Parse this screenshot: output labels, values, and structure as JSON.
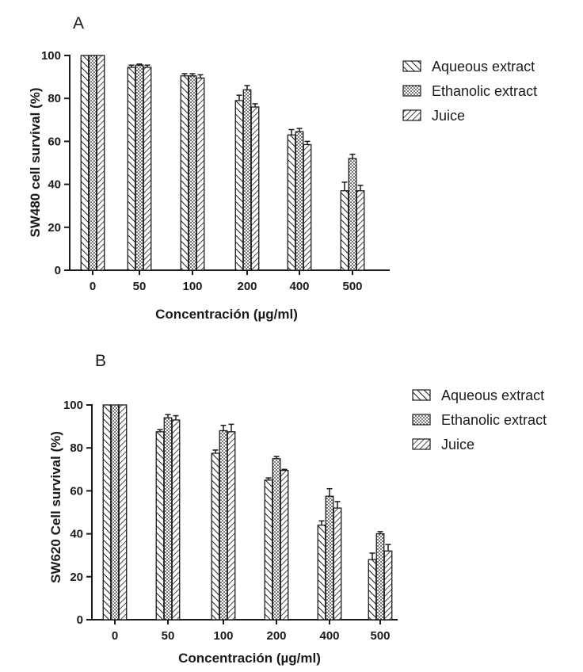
{
  "chart_data": [
    {
      "type": "bar",
      "panel_label": "A",
      "categories": [
        "0",
        "50",
        "100",
        "200",
        "400",
        "500"
      ],
      "series": [
        {
          "name": "Aqueous extract",
          "pattern": "hatch-back",
          "values": [
            100,
            94.5,
            90.5,
            79,
            63,
            37
          ],
          "errors": [
            0,
            1,
            1,
            2.5,
            2.5,
            4
          ]
        },
        {
          "name": "Ethanolic extract",
          "pattern": "dots",
          "values": [
            100,
            95.5,
            90.5,
            84,
            64.5,
            52
          ],
          "errors": [
            0,
            0.5,
            1,
            2,
            1.5,
            2
          ]
        },
        {
          "name": "Juice",
          "pattern": "hatch-forward",
          "values": [
            100,
            94.5,
            89.5,
            76,
            58.5,
            37
          ],
          "errors": [
            0,
            1,
            1.5,
            1.5,
            1.5,
            2.5
          ]
        }
      ],
      "xlabel": "Concentración (µg/ml)",
      "ylabel": "SW480 cell survival (%)",
      "ylim": [
        0,
        100
      ],
      "yticks": [
        "0",
        "20",
        "40",
        "60",
        "80",
        "100"
      ],
      "grid": false,
      "legend_position": "top-right"
    },
    {
      "type": "bar",
      "panel_label": "B",
      "categories": [
        "0",
        "50",
        "100",
        "200",
        "400",
        "500"
      ],
      "series": [
        {
          "name": "Aqueous extract",
          "pattern": "hatch-back",
          "values": [
            100,
            87.5,
            77.5,
            65,
            44,
            28
          ],
          "errors": [
            0,
            1,
            1.5,
            1,
            2,
            3
          ]
        },
        {
          "name": "Ethanolic extract",
          "pattern": "dots",
          "values": [
            100,
            94,
            88,
            75,
            57.5,
            40
          ],
          "errors": [
            0,
            1.5,
            2.5,
            1,
            3.5,
            1
          ]
        },
        {
          "name": "Juice",
          "pattern": "hatch-forward",
          "values": [
            100,
            93,
            87.5,
            69.5,
            52,
            32
          ],
          "errors": [
            0,
            2,
            3.5,
            0.5,
            3,
            3
          ]
        }
      ],
      "xlabel": "Concentración (µg/ml)",
      "ylabel": "SW620 Cell survival (%)",
      "ylim": [
        0,
        100
      ],
      "yticks": [
        "0",
        "20",
        "40",
        "60",
        "80",
        "100"
      ],
      "grid": false,
      "legend_position": "top-right"
    }
  ]
}
